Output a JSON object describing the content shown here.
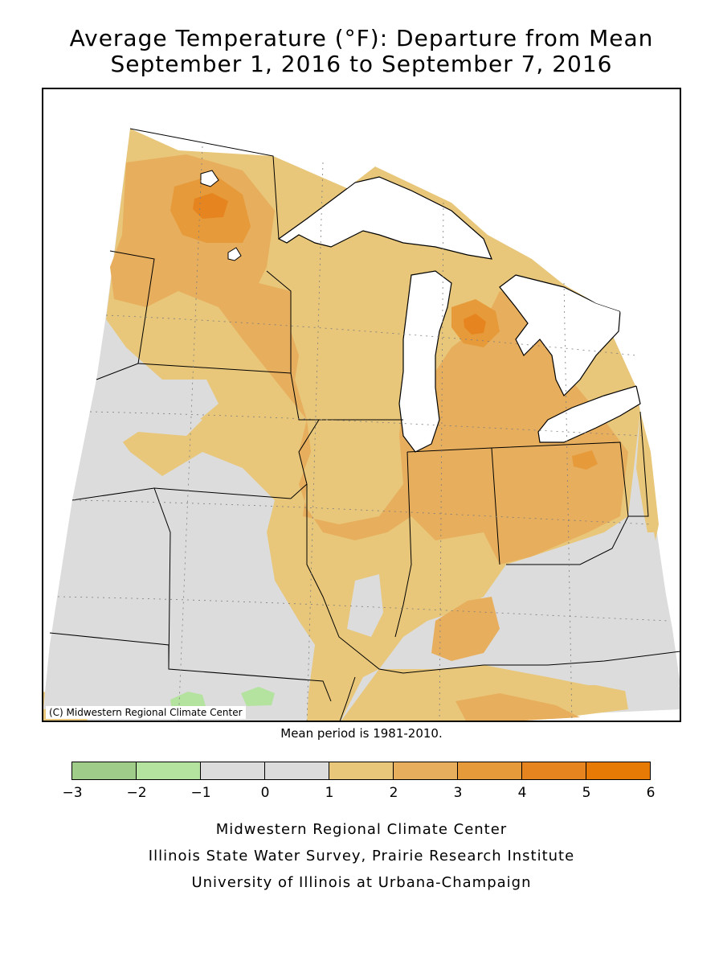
{
  "title": {
    "line1": "Average Temperature (°F): Departure from Mean",
    "line2": "September 1, 2016 to September 7, 2016"
  },
  "map": {
    "copyright": "(C) Midwestern Regional Climate Center",
    "mean_note": "Mean period is 1981-2010.",
    "colors": {
      "water": "#ffffff",
      "land_near_normal": "#dcdcdc",
      "light_green": "#b4e29f",
      "tan_1_2": "#e8c77a",
      "orange_2_3": "#e7ae5d",
      "orange_3_4": "#e69a3a",
      "orange_4_5": "#e68520"
    }
  },
  "legend": {
    "ticks": [
      "-3",
      "-2",
      "-1",
      "0",
      "1",
      "2",
      "3",
      "4",
      "5",
      "6"
    ],
    "bins": [
      {
        "min": -3,
        "max": -2,
        "color": "#a0cc8a"
      },
      {
        "min": -2,
        "max": -1,
        "color": "#b4e29f"
      },
      {
        "min": -1,
        "max": 0,
        "color": "#dcdcdc"
      },
      {
        "min": 0,
        "max": 1,
        "color": "#dcdcdc"
      },
      {
        "min": 1,
        "max": 2,
        "color": "#e8c77a"
      },
      {
        "min": 2,
        "max": 3,
        "color": "#e7ae5d"
      },
      {
        "min": 3,
        "max": 4,
        "color": "#e69a3a"
      },
      {
        "min": 4,
        "max": 5,
        "color": "#e68520"
      },
      {
        "min": 5,
        "max": 6,
        "color": "#e67a05"
      }
    ]
  },
  "credits": {
    "line1": "Midwestern Regional Climate Center",
    "line2": "Illinois State Water Survey, Prairie Research Institute",
    "line3": "University of Illinois at Urbana-Champaign"
  }
}
